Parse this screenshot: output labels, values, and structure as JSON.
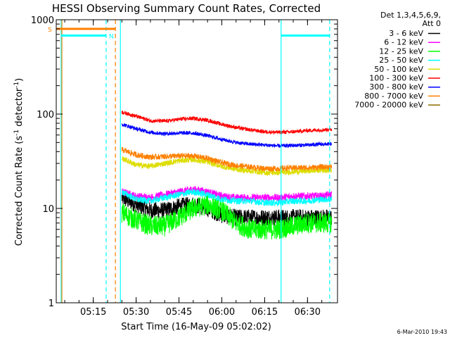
{
  "chart_data": {
    "type": "line",
    "title": "HESSI Observing Summary Count Rates, Corrected",
    "xlabel": "Start Time (16-May-09 05:02:02)",
    "ylabel": "Corrected Count Rate (s",
    "ylabel_sup1": "-1",
    "ylabel_mid": " detector",
    "ylabel_sup2": "-1",
    "ylabel_end": ")",
    "y_scale": "log",
    "xlim": [
      "05:02:02",
      "06:40:30"
    ],
    "ylim": [
      1,
      1000
    ],
    "x_ticks": [
      "05:15",
      "05:30",
      "05:45",
      "06:00",
      "06:15",
      "06:30"
    ],
    "y_ticks": [
      "1",
      "10",
      "100",
      "1000"
    ],
    "grid": false,
    "legend": {
      "position": "right",
      "header": [
        "Det 1,3,4,5,6,9,",
        "Att 0"
      ],
      "entries": [
        {
          "label": "3 - 6 keV",
          "color": "#000000"
        },
        {
          "label": "6 - 12 keV",
          "color": "#ff00ff"
        },
        {
          "label": "12 - 25 keV",
          "color": "#00ff00"
        },
        {
          "label": "25 - 50 keV",
          "color": "#00ffff"
        },
        {
          "label": "50 - 100 keV",
          "color": "#dddd00"
        },
        {
          "label": "100 - 300 keV",
          "color": "#ff0000"
        },
        {
          "label": "300 - 800 keV",
          "color": "#0000ff"
        },
        {
          "label": "800 - 7000 keV",
          "color": "#ff8000"
        },
        {
          "label": "7000 - 20000 keV",
          "color": "#8b6d00"
        }
      ]
    },
    "noise": {
      "3 - 6 keV": 0.18,
      "6 - 12 keV": 0.08,
      "12 - 25 keV": 0.22,
      "25 - 50 keV": 0.07,
      "50 - 100 keV": 0.06,
      "100 - 300 keV": 0.04,
      "300 - 800 keV": 0.04,
      "800 - 7000 keV": 0.06
    },
    "series": [
      {
        "name": "3 - 6 keV",
        "color": "#000000",
        "x": [
          "05:25:00",
          "05:30:00",
          "05:35:00",
          "05:40:00",
          "05:45:00",
          "05:50:00",
          "05:55:00",
          "06:00:00",
          "06:05:00",
          "06:10:00",
          "06:15:00",
          "06:20:00",
          "06:25:00",
          "06:30:00",
          "06:35:00",
          "06:38:30"
        ],
        "y": [
          13,
          11,
          9.5,
          9.5,
          10.5,
          11,
          10,
          8.5,
          8,
          8,
          8,
          8,
          8,
          8,
          8,
          8
        ]
      },
      {
        "name": "6 - 12 keV",
        "color": "#ff00ff",
        "x": [
          "05:25:00",
          "05:30:00",
          "05:35:00",
          "05:40:00",
          "05:45:00",
          "05:50:00",
          "05:55:00",
          "06:00:00",
          "06:05:00",
          "06:10:00",
          "06:15:00",
          "06:20:00",
          "06:25:00",
          "06:30:00",
          "06:35:00",
          "06:38:30"
        ],
        "y": [
          15,
          13.5,
          13,
          14,
          15,
          16,
          15,
          13.5,
          13,
          13,
          13,
          13,
          13.5,
          13.5,
          13.5,
          14
        ]
      },
      {
        "name": "12 - 25 keV",
        "color": "#00ff00",
        "x": [
          "05:25:00",
          "05:30:00",
          "05:35:00",
          "05:40:00",
          "05:45:00",
          "05:50:00",
          "05:55:00",
          "06:00:00",
          "06:05:00",
          "06:10:00",
          "06:15:00",
          "06:20:00",
          "06:25:00",
          "06:30:00",
          "06:35:00",
          "06:38:30"
        ],
        "y": [
          9,
          7.5,
          6.5,
          6.5,
          8,
          10,
          11,
          9.5,
          7,
          6,
          6,
          6,
          6.5,
          7,
          7,
          7
        ]
      },
      {
        "name": "25 - 50 keV",
        "color": "#00ffff",
        "x": [
          "05:25:00",
          "05:30:00",
          "05:35:00",
          "05:40:00",
          "05:45:00",
          "05:50:00",
          "05:55:00",
          "06:00:00",
          "06:05:00",
          "06:10:00",
          "06:15:00",
          "06:20:00",
          "06:25:00",
          "06:30:00",
          "06:35:00",
          "06:38:30"
        ],
        "y": [
          15,
          12.5,
          12,
          13,
          14,
          15,
          14,
          12.5,
          12,
          12,
          11.5,
          11.5,
          12,
          12,
          12.5,
          12.5
        ]
      },
      {
        "name": "50 - 100 keV",
        "color": "#dddd00",
        "x": [
          "05:25:00",
          "05:30:00",
          "05:35:00",
          "05:40:00",
          "05:45:00",
          "05:50:00",
          "05:55:00",
          "06:00:00",
          "06:05:00",
          "06:10:00",
          "06:15:00",
          "06:20:00",
          "06:25:00",
          "06:30:00",
          "06:35:00",
          "06:38:30"
        ],
        "y": [
          34,
          29,
          28,
          30,
          32,
          33,
          31,
          28,
          26,
          25,
          24,
          24,
          24.5,
          25,
          25.5,
          25.5
        ]
      },
      {
        "name": "100 - 300 keV",
        "color": "#ff0000",
        "x": [
          "05:25:00",
          "05:30:00",
          "05:35:00",
          "05:40:00",
          "05:45:00",
          "05:50:00",
          "05:55:00",
          "06:00:00",
          "06:05:00",
          "06:10:00",
          "06:15:00",
          "06:20:00",
          "06:25:00",
          "06:30:00",
          "06:35:00",
          "06:38:30"
        ],
        "y": [
          105,
          95,
          85,
          84,
          88,
          90,
          86,
          78,
          72,
          68,
          65,
          64,
          65,
          67,
          68,
          69
        ]
      },
      {
        "name": "300 - 800 keV",
        "color": "#0000ff",
        "x": [
          "05:25:00",
          "05:30:00",
          "05:35:00",
          "05:40:00",
          "05:45:00",
          "05:50:00",
          "05:55:00",
          "06:00:00",
          "06:05:00",
          "06:10:00",
          "06:15:00",
          "06:20:00",
          "06:25:00",
          "06:30:00",
          "06:35:00",
          "06:38:30"
        ],
        "y": [
          78,
          70,
          64,
          62,
          63,
          63,
          59,
          54,
          50,
          48,
          47,
          46,
          46.5,
          47,
          48,
          48
        ]
      },
      {
        "name": "800 - 7000 keV",
        "color": "#ff8000",
        "x": [
          "05:25:00",
          "05:30:00",
          "05:35:00",
          "05:40:00",
          "05:45:00",
          "05:50:00",
          "05:55:00",
          "06:00:00",
          "06:05:00",
          "06:10:00",
          "06:15:00",
          "06:20:00",
          "06:25:00",
          "06:30:00",
          "06:35:00",
          "06:38:30"
        ],
        "y": [
          42,
          37,
          35,
          35.5,
          36,
          36,
          34,
          30.5,
          28.5,
          27.5,
          26.5,
          26.5,
          27,
          27,
          27.5,
          27.5
        ]
      }
    ],
    "annotations": [
      {
        "label": "S",
        "color": "#ff8000"
      },
      {
        "label": "N",
        "color": "#00ffff"
      }
    ],
    "intervals": [
      {
        "kind": "saa",
        "color": "#ff8000",
        "start": "05:02:02",
        "end": "05:22:45",
        "level": 800
      },
      {
        "kind": "night",
        "color": "#00ffff",
        "start": "05:03:45",
        "end": "05:19:30",
        "level": 680
      },
      {
        "kind": "night",
        "color": "#00ffff",
        "start": "06:20:45",
        "end": "06:37:45",
        "level": 680
      }
    ],
    "markers": [
      {
        "t": "05:03:45",
        "color": "#00ffff",
        "dashed": false
      },
      {
        "t": "05:04:00",
        "color": "#ff8000",
        "dashed": false
      },
      {
        "t": "05:19:30",
        "color": "#00ffff",
        "dashed": true
      },
      {
        "t": "05:22:45",
        "color": "#ff8000",
        "dashed": true
      },
      {
        "t": "05:24:30",
        "color": "#00ffff",
        "dashed": false
      },
      {
        "t": "06:20:45",
        "color": "#00ffff",
        "dashed": false
      },
      {
        "t": "06:37:45",
        "color": "#00ffff",
        "dashed": true
      }
    ]
  },
  "footer": {
    "timestamp": "6-Mar-2010 19:43"
  }
}
